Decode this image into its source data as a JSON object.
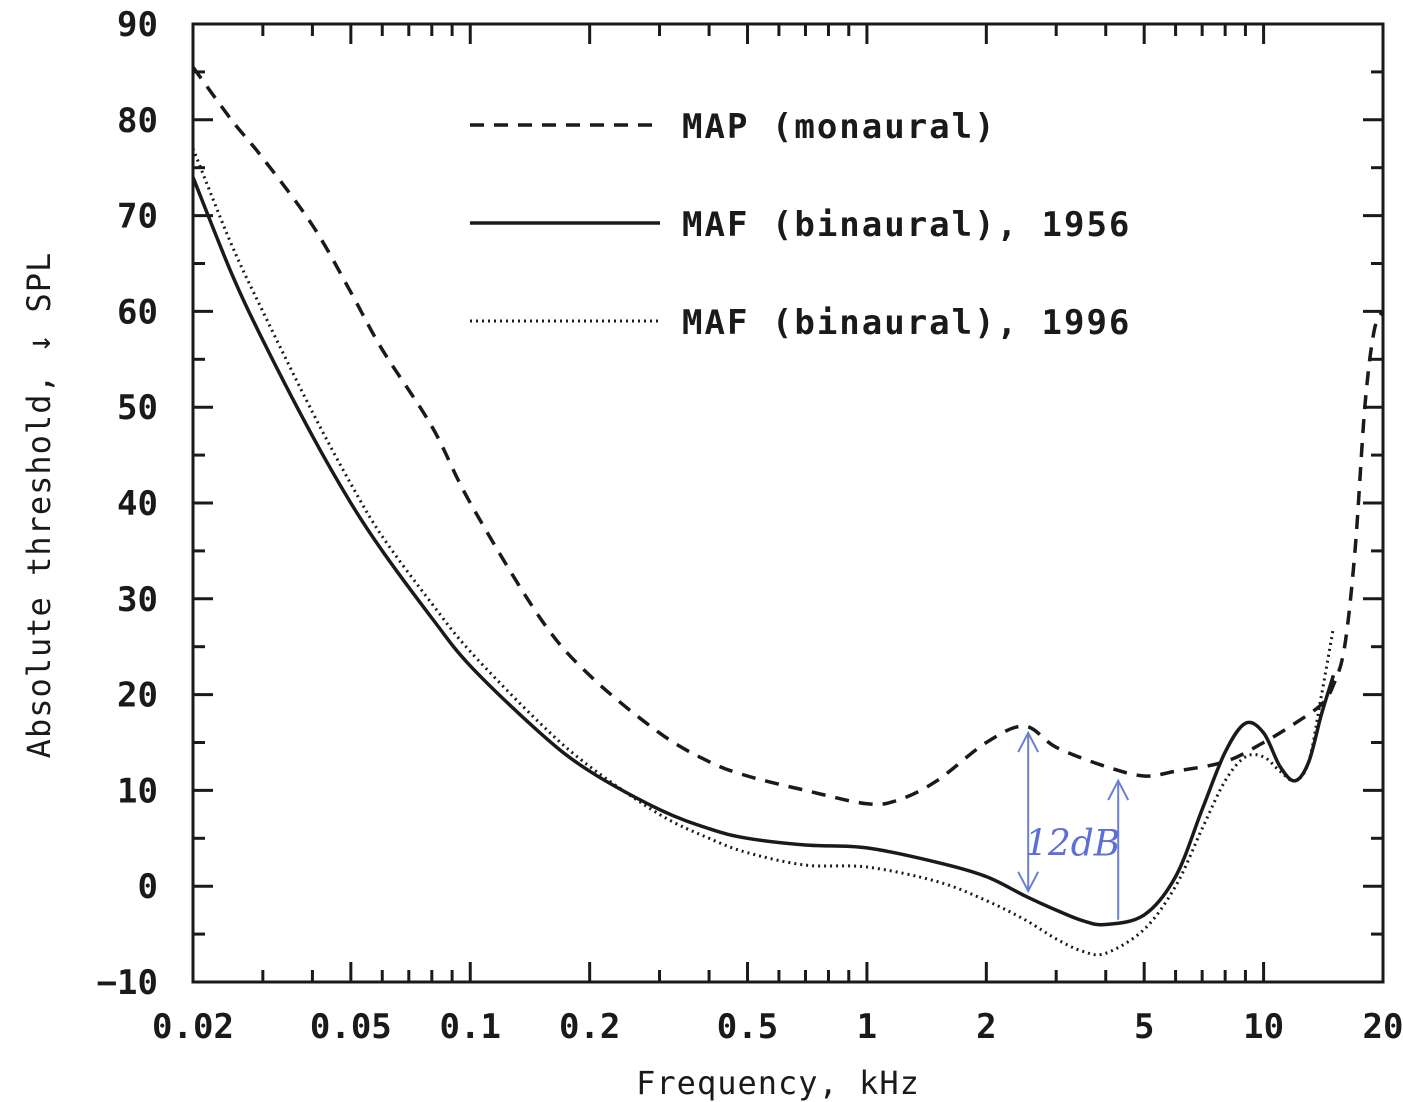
{
  "chart_data": {
    "type": "line",
    "xscale": "log",
    "xlim": [
      0.02,
      20
    ],
    "ylim": [
      -10,
      90
    ],
    "xlabel": "Frequency, kHz",
    "ylabel": "Absolute threshold, ↓ SPL",
    "xticks": [
      0.02,
      0.05,
      0.1,
      0.2,
      0.5,
      1,
      2,
      5,
      10,
      20
    ],
    "xtick_labels": [
      "0.02",
      "0.05",
      "0.1",
      "0.2",
      "0.5",
      "1",
      "2",
      "5",
      "10",
      "20"
    ],
    "yticks": [
      -10,
      0,
      10,
      20,
      30,
      40,
      50,
      60,
      70,
      80,
      90
    ],
    "ytick_labels": [
      "−10",
      "0",
      "10",
      "20",
      "30",
      "40",
      "50",
      "60",
      "70",
      "80",
      "90"
    ],
    "grid": false,
    "legend_position": "top-center",
    "series": [
      {
        "name": "MAP (monaural)",
        "style": "dashed",
        "color": "#1a1a1a",
        "x": [
          0.02,
          0.025,
          0.03,
          0.04,
          0.05,
          0.06,
          0.08,
          0.1,
          0.15,
          0.2,
          0.3,
          0.4,
          0.5,
          0.7,
          1.0,
          1.2,
          1.5,
          2.0,
          2.5,
          3.0,
          4.0,
          5.0,
          6.0,
          8.0,
          10.0,
          12.0,
          14.0,
          15.0,
          16.0,
          17.0,
          18.0,
          19.0,
          20.0
        ],
        "y": [
          85.5,
          80,
          76,
          69,
          62,
          56,
          48,
          40,
          28,
          22,
          16,
          13,
          11.5,
          10,
          8.6,
          9,
          11,
          15,
          16.7,
          14.5,
          12.5,
          11.5,
          12,
          13,
          15,
          17,
          19,
          21,
          25,
          35,
          50,
          58,
          60
        ]
      },
      {
        "name": "MAF (binaural), 1956",
        "style": "solid",
        "color": "#1a1a1a",
        "x": [
          0.02,
          0.025,
          0.03,
          0.04,
          0.05,
          0.06,
          0.08,
          0.1,
          0.15,
          0.2,
          0.3,
          0.4,
          0.5,
          0.7,
          1.0,
          1.5,
          2.0,
          2.5,
          3.0,
          3.5,
          4.0,
          5.0,
          6.0,
          7.0,
          8.0,
          9.0,
          10.0,
          11.0,
          12.0,
          13.0,
          14.0,
          15.0
        ],
        "y": [
          74,
          64,
          57,
          47,
          40,
          35,
          28,
          23,
          16,
          12,
          8,
          6,
          5,
          4.3,
          4,
          2.5,
          1,
          -1,
          -2.5,
          -3.6,
          -4,
          -3,
          1,
          8,
          14,
          17,
          16,
          12.5,
          11,
          13,
          18,
          22
        ]
      },
      {
        "name": "MAF (binaural), 1996",
        "style": "dotted",
        "color": "#1a1a1a",
        "x": [
          0.02,
          0.025,
          0.03,
          0.04,
          0.05,
          0.06,
          0.08,
          0.1,
          0.15,
          0.2,
          0.3,
          0.4,
          0.5,
          0.7,
          1.0,
          1.5,
          2.0,
          2.5,
          3.0,
          3.5,
          4.0,
          5.0,
          6.0,
          7.0,
          8.0,
          9.0,
          10.0,
          11.0,
          12.0,
          13.0,
          14.0,
          15.0
        ],
        "y": [
          77,
          67,
          60,
          49.5,
          42,
          36.5,
          29.5,
          24.5,
          17,
          12.5,
          7.5,
          5,
          3.5,
          2.2,
          2,
          0.5,
          -1.5,
          -3.5,
          -5.5,
          -6.8,
          -7,
          -4.5,
          0,
          6,
          11,
          13.5,
          13.5,
          12,
          11,
          13,
          20,
          27
        ]
      }
    ],
    "annotations": [
      "12dB"
    ]
  }
}
